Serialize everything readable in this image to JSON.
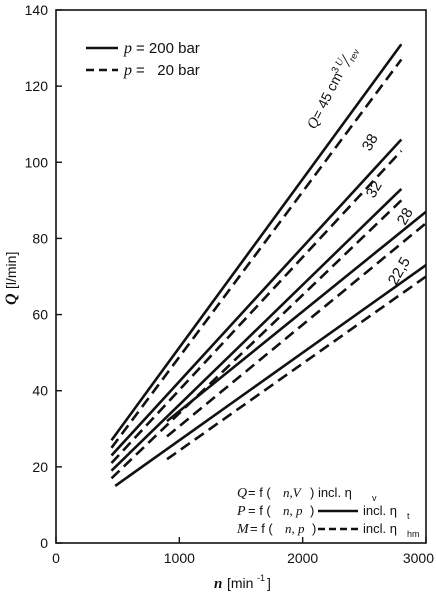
{
  "chart_data": {
    "type": "line",
    "title": "",
    "x_axis": {
      "label_var": "n",
      "label_unit": "[min",
      "label_unit_sup": "-1",
      "label_unit_close": "]",
      "range": [
        0,
        3000
      ],
      "ticks": [
        0,
        1000,
        2000,
        3000
      ]
    },
    "y_axis": {
      "label_var": "Q",
      "label_unit": "[l/min]",
      "range": [
        0,
        140
      ],
      "ticks": [
        0,
        20,
        40,
        60,
        80,
        100,
        120,
        140
      ]
    },
    "grid": false,
    "legend": {
      "placement": "top-left",
      "items": [
        {
          "var": "p",
          "text": "= 200 bar",
          "style": "solid"
        },
        {
          "var": "p",
          "text": "=   20 bar",
          "style": "dashed"
        }
      ]
    },
    "series": [
      {
        "label": "Q = 45 cm³/U_rev",
        "pressure_bar": 200,
        "style": "solid",
        "x": [
          450,
          2800
        ],
        "y": [
          27,
          131
        ]
      },
      {
        "label": "Q = 45 cm³/U_rev",
        "pressure_bar": 20,
        "style": "dashed",
        "x": [
          450,
          2800
        ],
        "y": [
          25,
          127
        ]
      },
      {
        "label": "38",
        "pressure_bar": 200,
        "style": "solid",
        "x": [
          450,
          2800
        ],
        "y": [
          23,
          106
        ]
      },
      {
        "label": "38",
        "pressure_bar": 20,
        "style": "dashed",
        "x": [
          450,
          2800
        ],
        "y": [
          21,
          103
        ]
      },
      {
        "label": "32",
        "pressure_bar": 200,
        "style": "solid",
        "x": [
          450,
          2800
        ],
        "y": [
          19,
          93
        ]
      },
      {
        "label": "32",
        "pressure_bar": 20,
        "style": "dashed",
        "x": [
          450,
          2800
        ],
        "y": [
          17,
          90
        ]
      },
      {
        "label": "28",
        "pressure_bar": 200,
        "style": "solid",
        "x": [
          900,
          3000
        ],
        "y": [
          32,
          87
        ]
      },
      {
        "label": "28",
        "pressure_bar": 20,
        "style": "dashed",
        "x": [
          900,
          3000
        ],
        "y": [
          28,
          84
        ]
      },
      {
        "label": "22,5",
        "pressure_bar": 200,
        "style": "solid",
        "x": [
          480,
          3000
        ],
        "y": [
          15,
          73
        ]
      },
      {
        "label": "22,5",
        "pressure_bar": 20,
        "style": "dashed",
        "x": [
          900,
          3000
        ],
        "y": [
          22,
          70
        ]
      }
    ],
    "annotations": {
      "q_label": {
        "var": "Q",
        "text": "= 45 cm",
        "sup": "3",
        "frac_num": "U",
        "frac_den": "rev"
      },
      "curve_labels": [
        "38",
        "32",
        "28",
        "22,5"
      ],
      "formula_box": [
        {
          "var": "Q",
          "text": "= f (",
          "args": "n,V",
          "close": ") incl. η",
          "sub": "v",
          "style": "none"
        },
        {
          "var": "P",
          "text": "= f (",
          "args": "n, p",
          "close": ")",
          "tail": "incl. η",
          "sub": "t",
          "style": "solid"
        },
        {
          "var": "M",
          "text": "= f (",
          "args": "n, p",
          "close": ")",
          "tail": "incl. η",
          "sub": "hm",
          "style": "dashed"
        }
      ]
    }
  }
}
